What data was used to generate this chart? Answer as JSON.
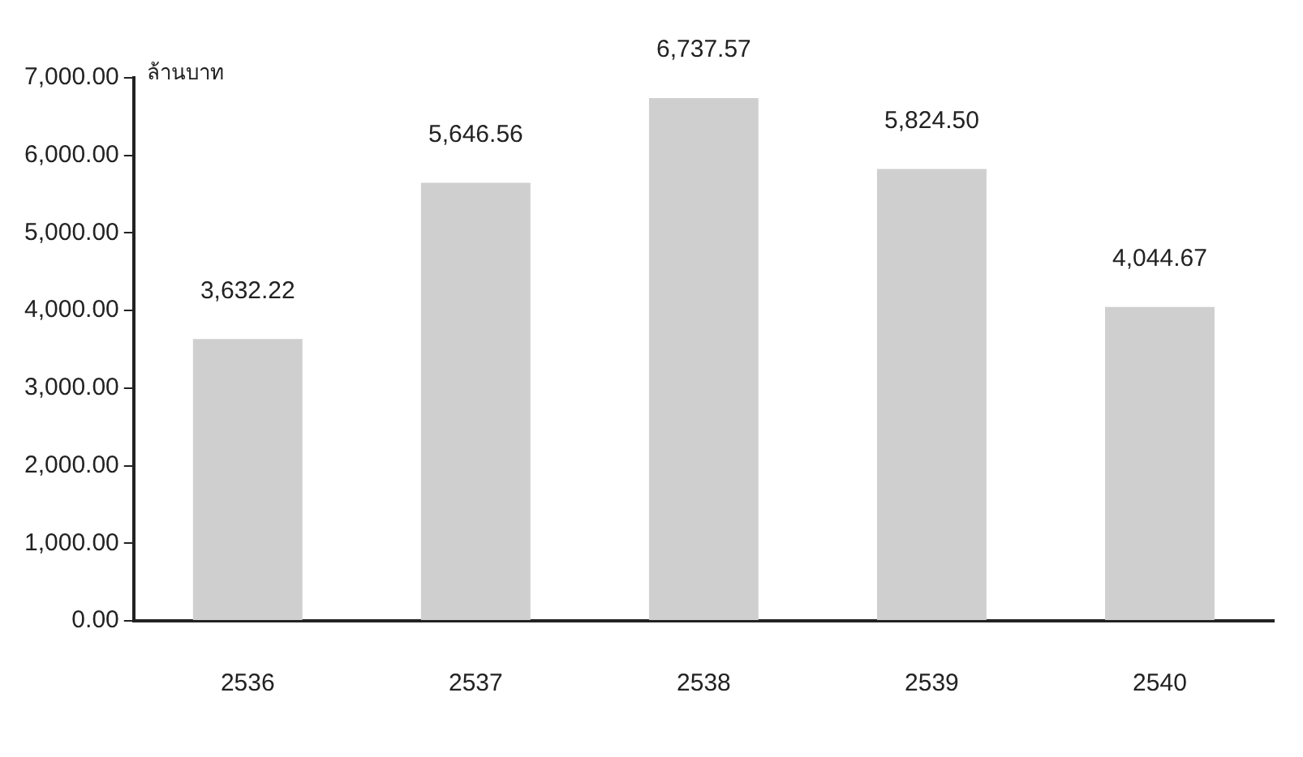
{
  "chart_data": {
    "type": "bar",
    "ylabel": "ล้านบาท",
    "categories": [
      "2536",
      "2537",
      "2538",
      "2539",
      "2540"
    ],
    "values": [
      3632.22,
      5646.56,
      6737.57,
      5824.5,
      4044.67
    ],
    "value_labels": [
      "3,632.22",
      "5,646.56",
      "6,737.57",
      "5,824.50",
      "4,044.67"
    ],
    "color": "#cfcfcf",
    "ylim": [
      0,
      7000
    ],
    "yticks": [
      {
        "value": 0,
        "label": "0.00"
      },
      {
        "value": 1000,
        "label": "1,000.00"
      },
      {
        "value": 2000,
        "label": "2,000.00"
      },
      {
        "value": 3000,
        "label": "3,000.00"
      },
      {
        "value": 4000,
        "label": "4,000.00"
      },
      {
        "value": 5000,
        "label": "5,000.00"
      },
      {
        "value": 6000,
        "label": "6,000.00"
      },
      {
        "value": 7000,
        "label": "7,000.00"
      }
    ],
    "grid": false,
    "legend": false
  }
}
